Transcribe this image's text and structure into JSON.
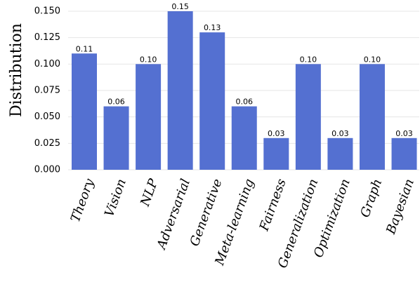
{
  "chart_data": {
    "type": "bar",
    "categories": [
      "Theory",
      "Vision",
      "NLP",
      "Adversarial",
      "Generative",
      "Meta-learning",
      "Fairness",
      "Generalization",
      "Optimization",
      "Graph",
      "Bayesian"
    ],
    "values": [
      0.11,
      0.06,
      0.1,
      0.15,
      0.13,
      0.06,
      0.03,
      0.1,
      0.03,
      0.1,
      0.03
    ],
    "data_labels": [
      "0.11",
      "0.06",
      "0.10",
      "0.15",
      "0.13",
      "0.06",
      "0.03",
      "0.10",
      "0.03",
      "0.10",
      "0.03"
    ],
    "title": "",
    "xlabel": "",
    "ylabel": "Distribution",
    "ylim": [
      0,
      0.15
    ],
    "yticks": [
      "0.000",
      "0.025",
      "0.050",
      "0.075",
      "0.100",
      "0.125",
      "0.150"
    ],
    "grid": "horizontal",
    "bar_color": "#5470d1"
  }
}
